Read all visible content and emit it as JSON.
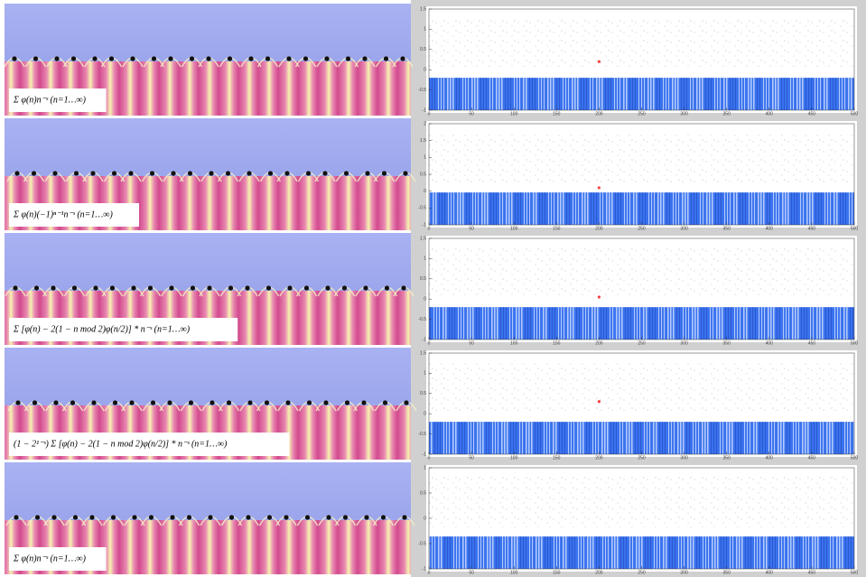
{
  "chart_data": [
    {
      "type": "scatter",
      "annotation": "Σ φ(n)n⁻ˢ  (n=1…∞)",
      "x": [
        200
      ],
      "values": [
        0.2
      ],
      "color": "#ff4040",
      "xlim": [
        0,
        500
      ],
      "xticks": [
        0,
        50,
        100,
        150,
        200,
        250,
        300,
        350,
        400,
        450,
        500
      ],
      "ylim": [
        -1,
        1.5
      ],
      "yticks": [
        -1,
        -0.5,
        0,
        0.5,
        1,
        1.5
      ]
    },
    {
      "type": "scatter",
      "annotation": "Σ φ(n)(−1)ⁿ⁻¹n⁻ˢ  (n=1…∞)",
      "x": [
        200
      ],
      "values": [
        0.1
      ],
      "color": "#ff4040",
      "xlim": [
        0,
        500
      ],
      "xticks": [
        0,
        50,
        100,
        150,
        200,
        250,
        300,
        350,
        400,
        450,
        500
      ],
      "ylim": [
        -1,
        2
      ],
      "yticks": [
        -1,
        -0.5,
        0,
        0.5,
        1,
        1.5,
        2
      ]
    },
    {
      "type": "scatter",
      "annotation": "Σ [φ(n) − 2(1 − n mod 2)φ(n/2)] * n⁻ˢ  (n=1…∞)",
      "x": [
        200
      ],
      "values": [
        0.05
      ],
      "color": "#ff4040",
      "xlim": [
        0,
        500
      ],
      "xticks": [
        0,
        50,
        100,
        150,
        200,
        250,
        300,
        350,
        400,
        450,
        500
      ],
      "ylim": [
        -1,
        1.5
      ],
      "yticks": [
        -1,
        -0.5,
        0,
        0.5,
        1,
        1.5
      ]
    },
    {
      "type": "scatter",
      "annotation": "(1 − 2¹⁻ˢ) Σ [φ(n) − 2(1 − n mod 2)φ(n/2)] * n⁻ˢ  (n=1…∞)",
      "x": [
        200
      ],
      "values": [
        0.3
      ],
      "color": "#ff4040",
      "xlim": [
        0,
        500
      ],
      "xticks": [
        0,
        50,
        100,
        150,
        200,
        250,
        300,
        350,
        400,
        450,
        500
      ],
      "ylim": [
        -1,
        1.5
      ],
      "yticks": [
        -1,
        -0.5,
        0,
        0.5,
        1,
        1.5
      ]
    },
    {
      "type": "scatter",
      "annotation": "Σ φ(n)n⁻ˢ  (n=1…∞)",
      "x": [],
      "values": [],
      "color": "#ff4040",
      "xlim": [
        0,
        500
      ],
      "xticks": [
        0,
        50,
        100,
        150,
        200,
        250,
        300,
        350,
        400,
        450,
        500
      ],
      "ylim": [
        -1,
        1
      ],
      "yticks": [
        -1,
        -0.5,
        0,
        0.5,
        1
      ]
    }
  ]
}
